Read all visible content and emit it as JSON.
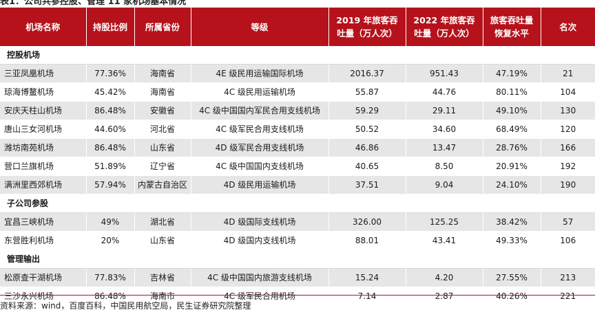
{
  "title": "表1：公司共参控股、管理 11 家机场基本情况",
  "headers": {
    "name": "机场名称",
    "stake": "持股比例",
    "province": "所属省份",
    "grade": "等级",
    "pax2019_line1": "2019 年旅客吞",
    "pax2019_line2": "吐量（万人次）",
    "pax2022_line1": "2022 年旅客吞",
    "pax2022_line2": "吐量（万人次）",
    "recovery_line1": "旅客吞吐量",
    "recovery_line2": "恢复水平",
    "rank": "名次"
  },
  "sections": [
    {
      "label": "控股机场",
      "rows": [
        {
          "name": "三亚凤凰机场",
          "stake": "77.36%",
          "province": "海南省",
          "grade": "4E 级民用运输国际机场",
          "pax2019": "2016.37",
          "pax2022": "951.43",
          "recovery": "47.19%",
          "rank": "21"
        },
        {
          "name": "琼海博鳌机场",
          "stake": "45.42%",
          "province": "海南省",
          "grade": "4C 级民用运输机场",
          "pax2019": "55.87",
          "pax2022": "44.76",
          "recovery": "80.11%",
          "rank": "104"
        },
        {
          "name": "安庆天柱山机场",
          "stake": "86.48%",
          "province": "安徽省",
          "grade": "4C 级中国国内军民合用支线机场",
          "pax2019": "59.29",
          "pax2022": "29.11",
          "recovery": "49.10%",
          "rank": "130"
        },
        {
          "name": "唐山三女河机场",
          "stake": "44.60%",
          "province": "河北省",
          "grade": "4C 级军民合用支线机场",
          "pax2019": "50.52",
          "pax2022": "34.60",
          "recovery": "68.49%",
          "rank": "120"
        },
        {
          "name": "潍坊南苑机场",
          "stake": "86.48%",
          "province": "山东省",
          "grade": "4D 级军民合用支线机场",
          "pax2019": "46.86",
          "pax2022": "13.47",
          "recovery": "28.76%",
          "rank": "166"
        },
        {
          "name": "营口兰旗机场",
          "stake": "51.89%",
          "province": "辽宁省",
          "grade": "4C 级中国国内支线机场",
          "pax2019": "40.65",
          "pax2022": "8.50",
          "recovery": "20.91%",
          "rank": "192"
        },
        {
          "name": "满洲里西郊机场",
          "stake": "57.94%",
          "province": "内蒙古自治区",
          "grade": "4D 级民用运输机场",
          "pax2019": "37.51",
          "pax2022": "9.04",
          "recovery": "24.10%",
          "rank": "190"
        }
      ]
    },
    {
      "label": "子公司参股",
      "rows": [
        {
          "name": "宜昌三峡机场",
          "stake": "49%",
          "province": "湖北省",
          "grade": "4D 级国际支线机场",
          "pax2019": "326.00",
          "pax2022": "125.25",
          "recovery": "38.42%",
          "rank": "57"
        },
        {
          "name": "东营胜利机场",
          "stake": "20%",
          "province": "山东省",
          "grade": "4D 级国内支线机场",
          "pax2019": "88.01",
          "pax2022": "43.41",
          "recovery": "49.33%",
          "rank": "106"
        }
      ]
    },
    {
      "label": "管理输出",
      "rows": [
        {
          "name": "松原查干湖机场",
          "stake": "77.83%",
          "province": "吉林省",
          "grade": "4C 级中国国内旅游支线机场",
          "pax2019": "15.24",
          "pax2022": "4.20",
          "recovery": "27.55%",
          "rank": "213"
        },
        {
          "name": "三沙永兴机场",
          "stake": "86.48%",
          "province": "海南市",
          "grade": "4C 级军民合用机场",
          "pax2019": "7.14",
          "pax2022": "2.87",
          "recovery": "40.26%",
          "rank": "221"
        }
      ]
    }
  ],
  "source": "资料来源：wind，百度百科，中国民用航空局，民生证券研究院整理",
  "colors": {
    "header_bg": "#b5121b",
    "row_shade": "#e6e6e6"
  }
}
